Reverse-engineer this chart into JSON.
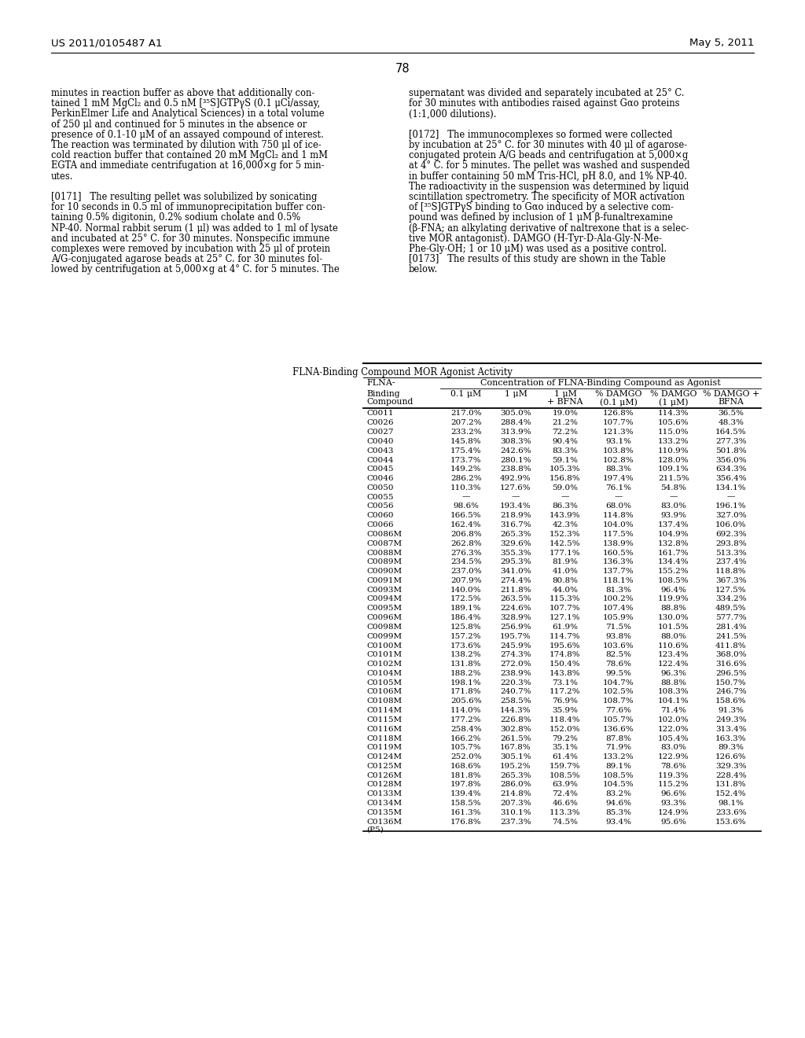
{
  "page_header_left": "US 2011/0105487 A1",
  "page_header_right": "May 5, 2011",
  "page_number": "78",
  "left_col_text": [
    "minutes in reaction buffer as above that additionally con-",
    "tained 1 mM MgCl₂ and 0.5 nM [³⁵S]GTPγS (0.1 μCi/assay,",
    "PerkinElmer Life and Analytical Sciences) in a total volume",
    "of 250 μl and continued for 5 minutes in the absence or",
    "presence of 0.1-10 μM of an assayed compound of interest.",
    "The reaction was terminated by dilution with 750 μl of ice-",
    "cold reaction buffer that contained 20 mM MgCl₂ and 1 mM",
    "EGTA and immediate centrifugation at 16,000×g for 5 min-",
    "utes.",
    "",
    "[0171]   The resulting pellet was solubilized by sonicating",
    "for 10 seconds in 0.5 ml of immunoprecipitation buffer con-",
    "taining 0.5% digitonin, 0.2% sodium cholate and 0.5%",
    "NP-40. Normal rabbit serum (1 μl) was added to 1 ml of lysate",
    "and incubated at 25° C. for 30 minutes. Nonspecific immune",
    "complexes were removed by incubation with 25 μl of protein",
    "A/G-conjugated agarose beads at 25° C. for 30 minutes fol-",
    "lowed by centrifugation at 5,000×g at 4° C. for 5 minutes. The"
  ],
  "right_col_text": [
    "supernatant was divided and separately incubated at 25° C.",
    "for 30 minutes with antibodies raised against Gαo proteins",
    "(1:1,000 dilutions).",
    "",
    "[0172]   The immunocomplexes so formed were collected",
    "by incubation at 25° C. for 30 minutes with 40 μl of agarose-",
    "conjugated protein A/G beads and centrifugation at 5,000×g",
    "at 4° C. for 5 minutes. The pellet was washed and suspended",
    "in buffer containing 50 mM Tris-HCl, pH 8.0, and 1% NP-40.",
    "The radioactivity in the suspension was determined by liquid",
    "scintillation spectrometry. The specificity of MOR activation",
    "of [³⁵S]GTPγS binding to Gαo induced by a selective com-",
    "pound was defined by inclusion of 1 μM β-funaltrexamine",
    "(β-FNA; an alkylating derivative of naltrexone that is a selec-",
    "tive MOR antagonist). DAMGO (H-Tyr-D-Ala-Gly-N-Me-",
    "Phe-Gly-OH; 1 or 10 μM) was used as a positive control.",
    "[0173]   The results of this study are shown in the Table",
    "below."
  ],
  "table_title": "FLNA-Binding Compound MOR Agonist Activity",
  "table_header2": "Concentration of FLNA-Binding Compound as Agonist",
  "col_headers": [
    "Binding\nCompound",
    "0.1 μM",
    "1 μM",
    "1 μM\n+ BFNA",
    "% DAMGO\n(0.1 μM)",
    "% DAMGO\n(1 μM)",
    "% DAMGO +\nBFNA"
  ],
  "rows": [
    [
      "C0011",
      "217.0%",
      "305.0%",
      "19.0%",
      "126.8%",
      "114.3%",
      "36.5%"
    ],
    [
      "C0026",
      "207.2%",
      "288.4%",
      "21.2%",
      "107.7%",
      "105.6%",
      "48.3%"
    ],
    [
      "C0027",
      "233.2%",
      "313.9%",
      "72.2%",
      "121.3%",
      "115.0%",
      "164.5%"
    ],
    [
      "C0040",
      "145.8%",
      "308.3%",
      "90.4%",
      "93.1%",
      "133.2%",
      "277.3%"
    ],
    [
      "C0043",
      "175.4%",
      "242.6%",
      "83.3%",
      "103.8%",
      "110.9%",
      "501.8%"
    ],
    [
      "C0044",
      "173.7%",
      "280.1%",
      "59.1%",
      "102.8%",
      "128.0%",
      "356.0%"
    ],
    [
      "C0045",
      "149.2%",
      "238.8%",
      "105.3%",
      "88.3%",
      "109.1%",
      "634.3%"
    ],
    [
      "C0046",
      "286.2%",
      "492.9%",
      "156.8%",
      "197.4%",
      "211.5%",
      "356.4%"
    ],
    [
      "C0050",
      "110.3%",
      "127.6%",
      "59.0%",
      "76.1%",
      "54.8%",
      "134.1%"
    ],
    [
      "C0055",
      "—",
      "—",
      "—",
      "—",
      "—",
      "—"
    ],
    [
      "C0056",
      "98.6%",
      "193.4%",
      "86.3%",
      "68.0%",
      "83.0%",
      "196.1%"
    ],
    [
      "C0060",
      "166.5%",
      "218.9%",
      "143.9%",
      "114.8%",
      "93.9%",
      "327.0%"
    ],
    [
      "C0066",
      "162.4%",
      "316.7%",
      "42.3%",
      "104.0%",
      "137.4%",
      "106.0%"
    ],
    [
      "C0086M",
      "206.8%",
      "265.3%",
      "152.3%",
      "117.5%",
      "104.9%",
      "692.3%"
    ],
    [
      "C0087M",
      "262.8%",
      "329.6%",
      "142.5%",
      "138.9%",
      "132.8%",
      "293.8%"
    ],
    [
      "C0088M",
      "276.3%",
      "355.3%",
      "177.1%",
      "160.5%",
      "161.7%",
      "513.3%"
    ],
    [
      "C0089M",
      "234.5%",
      "295.3%",
      "81.9%",
      "136.3%",
      "134.4%",
      "237.4%"
    ],
    [
      "C0090M",
      "237.0%",
      "341.0%",
      "41.0%",
      "137.7%",
      "155.2%",
      "118.8%"
    ],
    [
      "C0091M",
      "207.9%",
      "274.4%",
      "80.8%",
      "118.1%",
      "108.5%",
      "367.3%"
    ],
    [
      "C0093M",
      "140.0%",
      "211.8%",
      "44.0%",
      "81.3%",
      "96.4%",
      "127.5%"
    ],
    [
      "C0094M",
      "172.5%",
      "263.5%",
      "115.3%",
      "100.2%",
      "119.9%",
      "334.2%"
    ],
    [
      "C0095M",
      "189.1%",
      "224.6%",
      "107.7%",
      "107.4%",
      "88.8%",
      "489.5%"
    ],
    [
      "C0096M",
      "186.4%",
      "328.9%",
      "127.1%",
      "105.9%",
      "130.0%",
      "577.7%"
    ],
    [
      "C0098M",
      "125.8%",
      "256.9%",
      "61.9%",
      "71.5%",
      "101.5%",
      "281.4%"
    ],
    [
      "C0099M",
      "157.2%",
      "195.7%",
      "114.7%",
      "93.8%",
      "88.0%",
      "241.5%"
    ],
    [
      "C0100M",
      "173.6%",
      "245.9%",
      "195.6%",
      "103.6%",
      "110.6%",
      "411.8%"
    ],
    [
      "C0101M",
      "138.2%",
      "274.3%",
      "174.8%",
      "82.5%",
      "123.4%",
      "368.0%"
    ],
    [
      "C0102M",
      "131.8%",
      "272.0%",
      "150.4%",
      "78.6%",
      "122.4%",
      "316.6%"
    ],
    [
      "C0104M",
      "188.2%",
      "238.9%",
      "143.8%",
      "99.5%",
      "96.3%",
      "296.5%"
    ],
    [
      "C0105M",
      "198.1%",
      "220.3%",
      "73.1%",
      "104.7%",
      "88.8%",
      "150.7%"
    ],
    [
      "C0106M",
      "171.8%",
      "240.7%",
      "117.2%",
      "102.5%",
      "108.3%",
      "246.7%"
    ],
    [
      "C0108M",
      "205.6%",
      "258.5%",
      "76.9%",
      "108.7%",
      "104.1%",
      "158.6%"
    ],
    [
      "C0114M",
      "114.0%",
      "144.3%",
      "35.9%",
      "77.6%",
      "71.4%",
      "91.3%"
    ],
    [
      "C0115M",
      "177.2%",
      "226.8%",
      "118.4%",
      "105.7%",
      "102.0%",
      "249.3%"
    ],
    [
      "C0116M",
      "258.4%",
      "302.8%",
      "152.0%",
      "136.6%",
      "122.0%",
      "313.4%"
    ],
    [
      "C0118M",
      "166.2%",
      "261.5%",
      "79.2%",
      "87.8%",
      "105.4%",
      "163.3%"
    ],
    [
      "C0119M",
      "105.7%",
      "167.8%",
      "35.1%",
      "71.9%",
      "83.0%",
      "89.3%"
    ],
    [
      "C0124M",
      "252.0%",
      "305.1%",
      "61.4%",
      "133.2%",
      "122.9%",
      "126.6%"
    ],
    [
      "C0125M",
      "168.6%",
      "195.2%",
      "159.7%",
      "89.1%",
      "78.6%",
      "329.3%"
    ],
    [
      "C0126M",
      "181.8%",
      "265.3%",
      "108.5%",
      "108.5%",
      "119.3%",
      "228.4%"
    ],
    [
      "C0128M",
      "197.8%",
      "286.0%",
      "63.9%",
      "104.5%",
      "115.2%",
      "131.8%"
    ],
    [
      "C0133M",
      "139.4%",
      "214.8%",
      "72.4%",
      "83.2%",
      "96.6%",
      "152.4%"
    ],
    [
      "C0134M",
      "158.5%",
      "207.3%",
      "46.6%",
      "94.6%",
      "93.3%",
      "98.1%"
    ],
    [
      "C0135M",
      "161.3%",
      "310.1%",
      "113.3%",
      "85.3%",
      "124.9%",
      "233.6%"
    ],
    [
      "C0136M\n(P5)",
      "176.8%",
      "237.3%",
      "74.5%",
      "93.4%",
      "95.6%",
      "153.6%"
    ]
  ],
  "bg_color": "#ffffff",
  "text_color": "#000000"
}
